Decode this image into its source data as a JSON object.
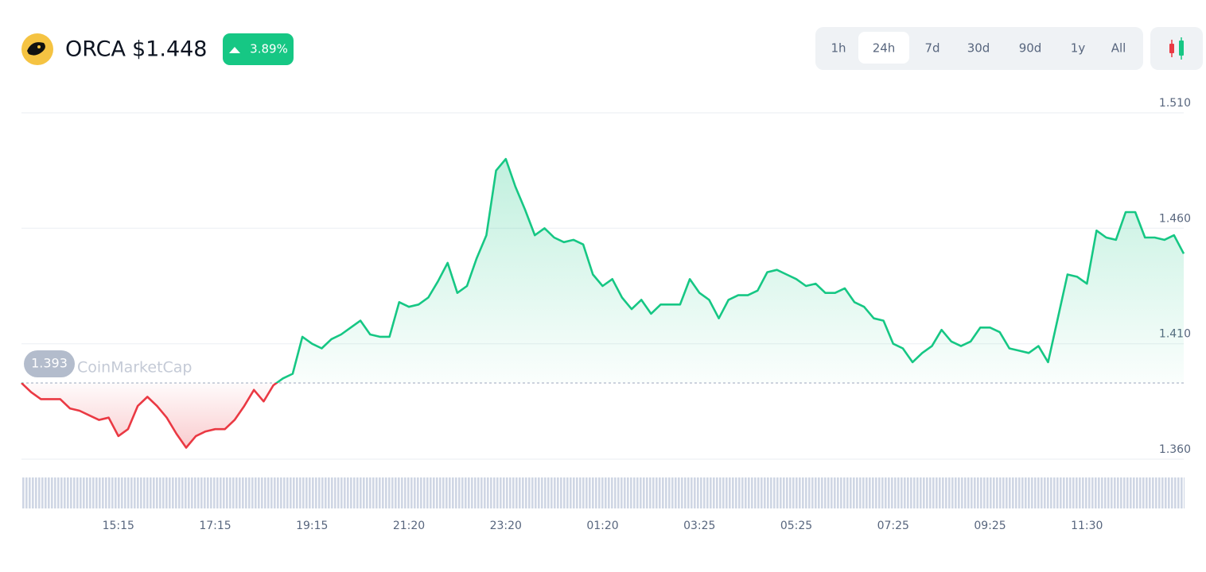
{
  "header": {
    "symbol": "ORCA",
    "price": "$1.448",
    "change": "3.89%"
  },
  "range_buttons": [
    "1h",
    "24h",
    "7d",
    "30d",
    "90d",
    "1y",
    "All"
  ],
  "selected_range": "24h",
  "watermark": "CoinMarketCap",
  "chart_data": {
    "type": "line",
    "categories": [
      null,
      null,
      null,
      null,
      null,
      null,
      null,
      null,
      null,
      null,
      "15:15",
      null,
      null,
      null,
      null,
      null,
      null,
      null,
      null,
      null,
      "17:15",
      null,
      null,
      null,
      null,
      null,
      null,
      null,
      null,
      null,
      "19:15",
      null,
      null,
      null,
      null,
      null,
      null,
      null,
      null,
      null,
      "21:20",
      null,
      null,
      null,
      null,
      null,
      null,
      null,
      null,
      null,
      "23:20",
      null,
      null,
      null,
      null,
      null,
      null,
      null,
      null,
      null,
      "01:20",
      null,
      null,
      null,
      null,
      null,
      null,
      null,
      null,
      null,
      "03:25",
      null,
      null,
      null,
      null,
      null,
      null,
      null,
      null,
      null,
      "05:25",
      null,
      null,
      null,
      null,
      null,
      null,
      null,
      null,
      null,
      "07:25",
      null,
      null,
      null,
      null,
      null,
      null,
      null,
      null,
      null,
      "09:25",
      null,
      null,
      null,
      null,
      null,
      null,
      null,
      null,
      null,
      "11:30",
      null,
      null,
      null,
      null,
      null,
      null,
      null,
      null,
      null,
      null
    ],
    "values": [
      1.393,
      1.389,
      1.386,
      1.386,
      1.386,
      1.382,
      1.381,
      1.379,
      1.377,
      1.378,
      1.37,
      1.373,
      1.383,
      1.387,
      1.383,
      1.378,
      1.371,
      1.365,
      1.37,
      1.372,
      1.373,
      1.373,
      1.377,
      1.383,
      1.39,
      1.385,
      1.392,
      1.395,
      1.397,
      1.413,
      1.41,
      1.408,
      1.412,
      1.414,
      1.417,
      1.42,
      1.414,
      1.413,
      1.413,
      1.428,
      1.426,
      1.427,
      1.43,
      1.437,
      1.445,
      1.432,
      1.435,
      1.447,
      1.457,
      1.485,
      1.49,
      1.478,
      1.468,
      1.457,
      1.46,
      1.456,
      1.454,
      1.455,
      1.453,
      1.44,
      1.435,
      1.438,
      1.43,
      1.425,
      1.429,
      1.423,
      1.427,
      1.427,
      1.427,
      1.438,
      1.432,
      1.429,
      1.421,
      1.429,
      1.431,
      1.431,
      1.433,
      1.441,
      1.442,
      1.44,
      1.438,
      1.435,
      1.436,
      1.432,
      1.432,
      1.434,
      1.428,
      1.426,
      1.421,
      1.42,
      1.41,
      1.408,
      1.402,
      1.406,
      1.409,
      1.416,
      1.411,
      1.409,
      1.411,
      1.417,
      1.417,
      1.415,
      1.408,
      1.407,
      1.406,
      1.409,
      1.402,
      1.421,
      1.44,
      1.439,
      1.436,
      1.459,
      1.456,
      1.455,
      1.467,
      1.467,
      1.456,
      1.456,
      1.455,
      1.457,
      1.449
    ],
    "baseline": 1.393,
    "up_color": "#16c784",
    "down_color": "#ea3943",
    "ylim": [
      1.36,
      1.51
    ],
    "yticks": [
      {
        "value": 1.36,
        "label": "1.360"
      },
      {
        "value": 1.41,
        "label": "1.410"
      },
      {
        "value": 1.46,
        "label": "1.460"
      },
      {
        "value": 1.51,
        "label": "1.510"
      }
    ],
    "grid": true
  }
}
